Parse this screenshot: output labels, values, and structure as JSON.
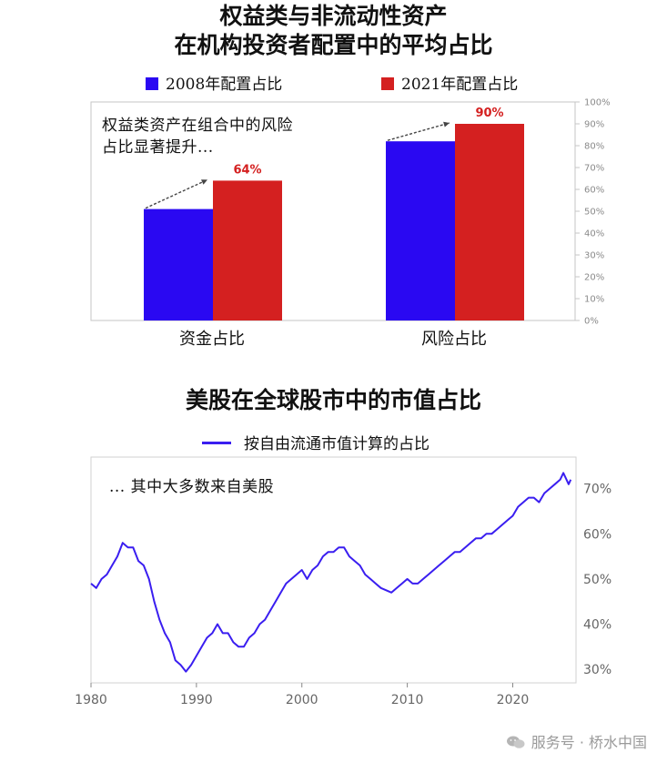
{
  "chart_data": [
    {
      "type": "bar",
      "title_line1": "权益类与非流动性资产",
      "title_line2": "在机构投资者配置中的平均占比",
      "categories": [
        "资金占比",
        "风险占比"
      ],
      "series": [
        {
          "name": "2008年配置占比",
          "values": [
            51,
            82
          ],
          "color": "#2a08f2"
        },
        {
          "name": "2021年配置占比",
          "values": [
            64,
            90
          ],
          "color": "#d42020"
        }
      ],
      "data_labels": [
        "64%",
        "90%"
      ],
      "ylim": [
        0,
        100
      ],
      "yticks": [
        "0%",
        "10%",
        "20%",
        "30%",
        "40%",
        "50%",
        "60%",
        "70%",
        "80%",
        "90%",
        "100%"
      ],
      "annotation": [
        "权益类资产在组合中的风险",
        "占比显著提升..."
      ],
      "legend": "top"
    },
    {
      "type": "line",
      "title": "美股在全球股市中的市值占比",
      "series": [
        {
          "name": "按自由流通市值计算的占比",
          "color": "#3a1ef0",
          "points": [
            [
              1980.0,
              49
            ],
            [
              1980.5,
              48
            ],
            [
              1981.0,
              50
            ],
            [
              1981.5,
              51
            ],
            [
              1982.0,
              53
            ],
            [
              1982.5,
              55
            ],
            [
              1983.0,
              58
            ],
            [
              1983.5,
              57
            ],
            [
              1984.0,
              57
            ],
            [
              1984.5,
              54
            ],
            [
              1985.0,
              53
            ],
            [
              1985.5,
              50
            ],
            [
              1986.0,
              45
            ],
            [
              1986.5,
              41
            ],
            [
              1987.0,
              38
            ],
            [
              1987.5,
              36
            ],
            [
              1988.0,
              32
            ],
            [
              1988.5,
              31
            ],
            [
              1989.0,
              29.5
            ],
            [
              1989.5,
              31
            ],
            [
              1990.0,
              33
            ],
            [
              1990.5,
              35
            ],
            [
              1991.0,
              37
            ],
            [
              1991.5,
              38
            ],
            [
              1992.0,
              40
            ],
            [
              1992.5,
              38
            ],
            [
              1993.0,
              38
            ],
            [
              1993.5,
              36
            ],
            [
              1994.0,
              35
            ],
            [
              1994.5,
              35
            ],
            [
              1995.0,
              37
            ],
            [
              1995.5,
              38
            ],
            [
              1996.0,
              40
            ],
            [
              1996.5,
              41
            ],
            [
              1997.0,
              43
            ],
            [
              1997.5,
              45
            ],
            [
              1998.0,
              47
            ],
            [
              1998.5,
              49
            ],
            [
              1999.0,
              50
            ],
            [
              1999.5,
              51
            ],
            [
              2000.0,
              52
            ],
            [
              2000.5,
              50
            ],
            [
              2001.0,
              52
            ],
            [
              2001.5,
              53
            ],
            [
              2002.0,
              55
            ],
            [
              2002.5,
              56
            ],
            [
              2003.0,
              56
            ],
            [
              2003.5,
              57
            ],
            [
              2004.0,
              57
            ],
            [
              2004.5,
              55
            ],
            [
              2005.0,
              54
            ],
            [
              2005.5,
              53
            ],
            [
              2006.0,
              51
            ],
            [
              2006.5,
              50
            ],
            [
              2007.0,
              49
            ],
            [
              2007.5,
              48
            ],
            [
              2008.0,
              47.5
            ],
            [
              2008.5,
              47
            ],
            [
              2009.0,
              48
            ],
            [
              2009.5,
              49
            ],
            [
              2010.0,
              50
            ],
            [
              2010.5,
              49
            ],
            [
              2011.0,
              49
            ],
            [
              2011.5,
              50
            ],
            [
              2012.0,
              51
            ],
            [
              2012.5,
              52
            ],
            [
              2013.0,
              53
            ],
            [
              2013.5,
              54
            ],
            [
              2014.0,
              55
            ],
            [
              2014.5,
              56
            ],
            [
              2015.0,
              56
            ],
            [
              2015.5,
              57
            ],
            [
              2016.0,
              58
            ],
            [
              2016.5,
              59
            ],
            [
              2017.0,
              59
            ],
            [
              2017.5,
              60
            ],
            [
              2018.0,
              60
            ],
            [
              2018.5,
              61
            ],
            [
              2019.0,
              62
            ],
            [
              2019.5,
              63
            ],
            [
              2020.0,
              64
            ],
            [
              2020.5,
              66
            ],
            [
              2021.0,
              67
            ],
            [
              2021.5,
              68
            ],
            [
              2022.0,
              68
            ],
            [
              2022.5,
              67
            ],
            [
              2023.0,
              69
            ],
            [
              2023.5,
              70
            ],
            [
              2024.0,
              71
            ],
            [
              2024.5,
              72
            ],
            [
              2024.8,
              73.5
            ],
            [
              2025.0,
              72.5
            ],
            [
              2025.3,
              71
            ],
            [
              2025.5,
              72
            ]
          ]
        }
      ],
      "xticks": [
        "1980",
        "1990",
        "2000",
        "2010",
        "2020"
      ],
      "yticks": [
        "30%",
        "40%",
        "50%",
        "60%",
        "70%"
      ],
      "xlim": [
        1980,
        2026
      ],
      "ylim": [
        27,
        77
      ],
      "annotation": "... 其中大多数来自美股",
      "legend": "top"
    }
  ],
  "watermark": "服务号 · 桥水中国"
}
